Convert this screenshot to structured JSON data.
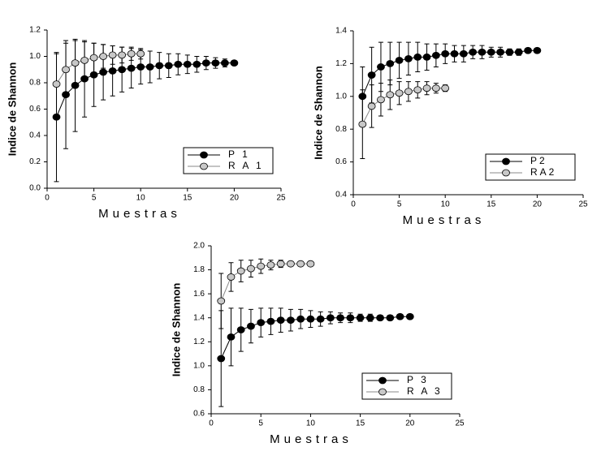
{
  "chart_data": [
    {
      "type": "line",
      "xlabel": "Muestras",
      "ylabel": "Indice de Shannon",
      "xlim": [
        0,
        25
      ],
      "xticks": [
        0,
        5,
        10,
        15,
        20,
        25
      ],
      "ylim": [
        0,
        1.2
      ],
      "yticks": [
        {
          "value": 0,
          "label": "0.0"
        },
        0.2,
        0.4,
        0.6,
        0.8,
        {
          "value": 1,
          "label": "1.0"
        },
        1.2
      ],
      "legend": "lower right",
      "series": [
        {
          "name": "P 1",
          "color": "#000000",
          "x": [
            1,
            2,
            3,
            4,
            5,
            6,
            7,
            8,
            9,
            10,
            11,
            12,
            13,
            14,
            15,
            16,
            17,
            18,
            19,
            20
          ],
          "values": [
            0.54,
            0.71,
            0.78,
            0.83,
            0.86,
            0.88,
            0.89,
            0.9,
            0.91,
            0.92,
            0.92,
            0.93,
            0.93,
            0.94,
            0.94,
            0.94,
            0.95,
            0.95,
            0.95,
            0.95
          ],
          "errors": [
            0.49,
            0.41,
            0.35,
            0.29,
            0.24,
            0.21,
            0.19,
            0.17,
            0.15,
            0.13,
            0.12,
            0.1,
            0.09,
            0.08,
            0.07,
            0.06,
            0.05,
            0.04,
            0.03,
            0
          ]
        },
        {
          "name": "R A 1",
          "color": "#c8c8c8",
          "x": [
            1,
            2,
            3,
            4,
            5,
            6,
            7,
            8,
            9,
            10
          ],
          "values": [
            0.79,
            0.9,
            0.95,
            0.97,
            0.99,
            1.0,
            1.01,
            1.01,
            1.02,
            1.02
          ],
          "errors": [
            0.23,
            0.2,
            0.17,
            0.14,
            0.11,
            0.09,
            0.07,
            0.06,
            0.05,
            0.04
          ]
        }
      ]
    },
    {
      "type": "line",
      "xlabel": "Muestras",
      "ylabel": "Indice de Shannon",
      "xlim": [
        0,
        25
      ],
      "xticks": [
        0,
        5,
        10,
        15,
        20,
        25
      ],
      "ylim": [
        0.4,
        1.4
      ],
      "yticks": [
        0.4,
        0.6,
        0.8,
        {
          "value": 1,
          "label": "1.0"
        },
        1.2,
        1.4
      ],
      "legend": "lower right",
      "series": [
        {
          "name": "P2",
          "color": "#000000",
          "x": [
            1,
            2,
            3,
            4,
            5,
            6,
            7,
            8,
            9,
            10,
            11,
            12,
            13,
            14,
            15,
            16,
            17,
            18,
            19,
            20
          ],
          "values": [
            1.0,
            1.13,
            1.18,
            1.2,
            1.22,
            1.23,
            1.24,
            1.24,
            1.25,
            1.26,
            1.26,
            1.26,
            1.27,
            1.27,
            1.27,
            1.27,
            1.27,
            1.27,
            1.28,
            1.28
          ],
          "errors": [
            0.18,
            0.17,
            0.15,
            0.13,
            0.11,
            0.1,
            0.09,
            0.08,
            0.07,
            0.06,
            0.05,
            0.05,
            0.04,
            0.04,
            0.03,
            0.03,
            0.02,
            0.02,
            0.01,
            0
          ]
        },
        {
          "name": "RA2",
          "color": "#c8c8c8",
          "x": [
            1,
            2,
            3,
            4,
            5,
            6,
            7,
            8,
            9,
            10
          ],
          "values": [
            0.83,
            0.94,
            0.98,
            1.01,
            1.02,
            1.03,
            1.04,
            1.05,
            1.05,
            1.05
          ],
          "errors": [
            0.21,
            0.13,
            0.1,
            0.09,
            0.07,
            0.06,
            0.05,
            0.04,
            0.03,
            0.02
          ]
        }
      ]
    },
    {
      "type": "line",
      "xlabel": "Muestras",
      "ylabel": "Indice de Shannon",
      "xlim": [
        0,
        25
      ],
      "xticks": [
        0,
        5,
        10,
        15,
        20,
        25
      ],
      "ylim": [
        0.6,
        2.0
      ],
      "yticks": [
        0.6,
        0.8,
        {
          "value": 1,
          "label": "1.0"
        },
        1.2,
        1.4,
        1.6,
        1.8,
        {
          "value": 2,
          "label": "2.0"
        }
      ],
      "legend": "lower right",
      "series": [
        {
          "name": "P 3",
          "color": "#000000",
          "x": [
            1,
            2,
            3,
            4,
            5,
            6,
            7,
            8,
            9,
            10,
            11,
            12,
            13,
            14,
            15,
            16,
            17,
            18,
            19,
            20
          ],
          "values": [
            1.06,
            1.24,
            1.3,
            1.33,
            1.36,
            1.37,
            1.38,
            1.38,
            1.39,
            1.39,
            1.39,
            1.4,
            1.4,
            1.4,
            1.4,
            1.4,
            1.4,
            1.4,
            1.41,
            1.41
          ],
          "errors": [
            0.4,
            0.24,
            0.18,
            0.14,
            0.12,
            0.11,
            0.1,
            0.09,
            0.08,
            0.07,
            0.06,
            0.05,
            0.04,
            0.04,
            0.03,
            0.03,
            0.02,
            0.02,
            0.01,
            0
          ]
        },
        {
          "name": "R A 3",
          "color": "#c8c8c8",
          "x": [
            1,
            2,
            3,
            4,
            5,
            6,
            7,
            8,
            9,
            10
          ],
          "values": [
            1.54,
            1.74,
            1.79,
            1.81,
            1.83,
            1.84,
            1.85,
            1.85,
            1.85,
            1.85
          ],
          "errors": [
            0.23,
            0.12,
            0.09,
            0.07,
            0.06,
            0.04,
            0.03,
            0.02,
            0.02,
            0.01
          ]
        }
      ]
    }
  ]
}
